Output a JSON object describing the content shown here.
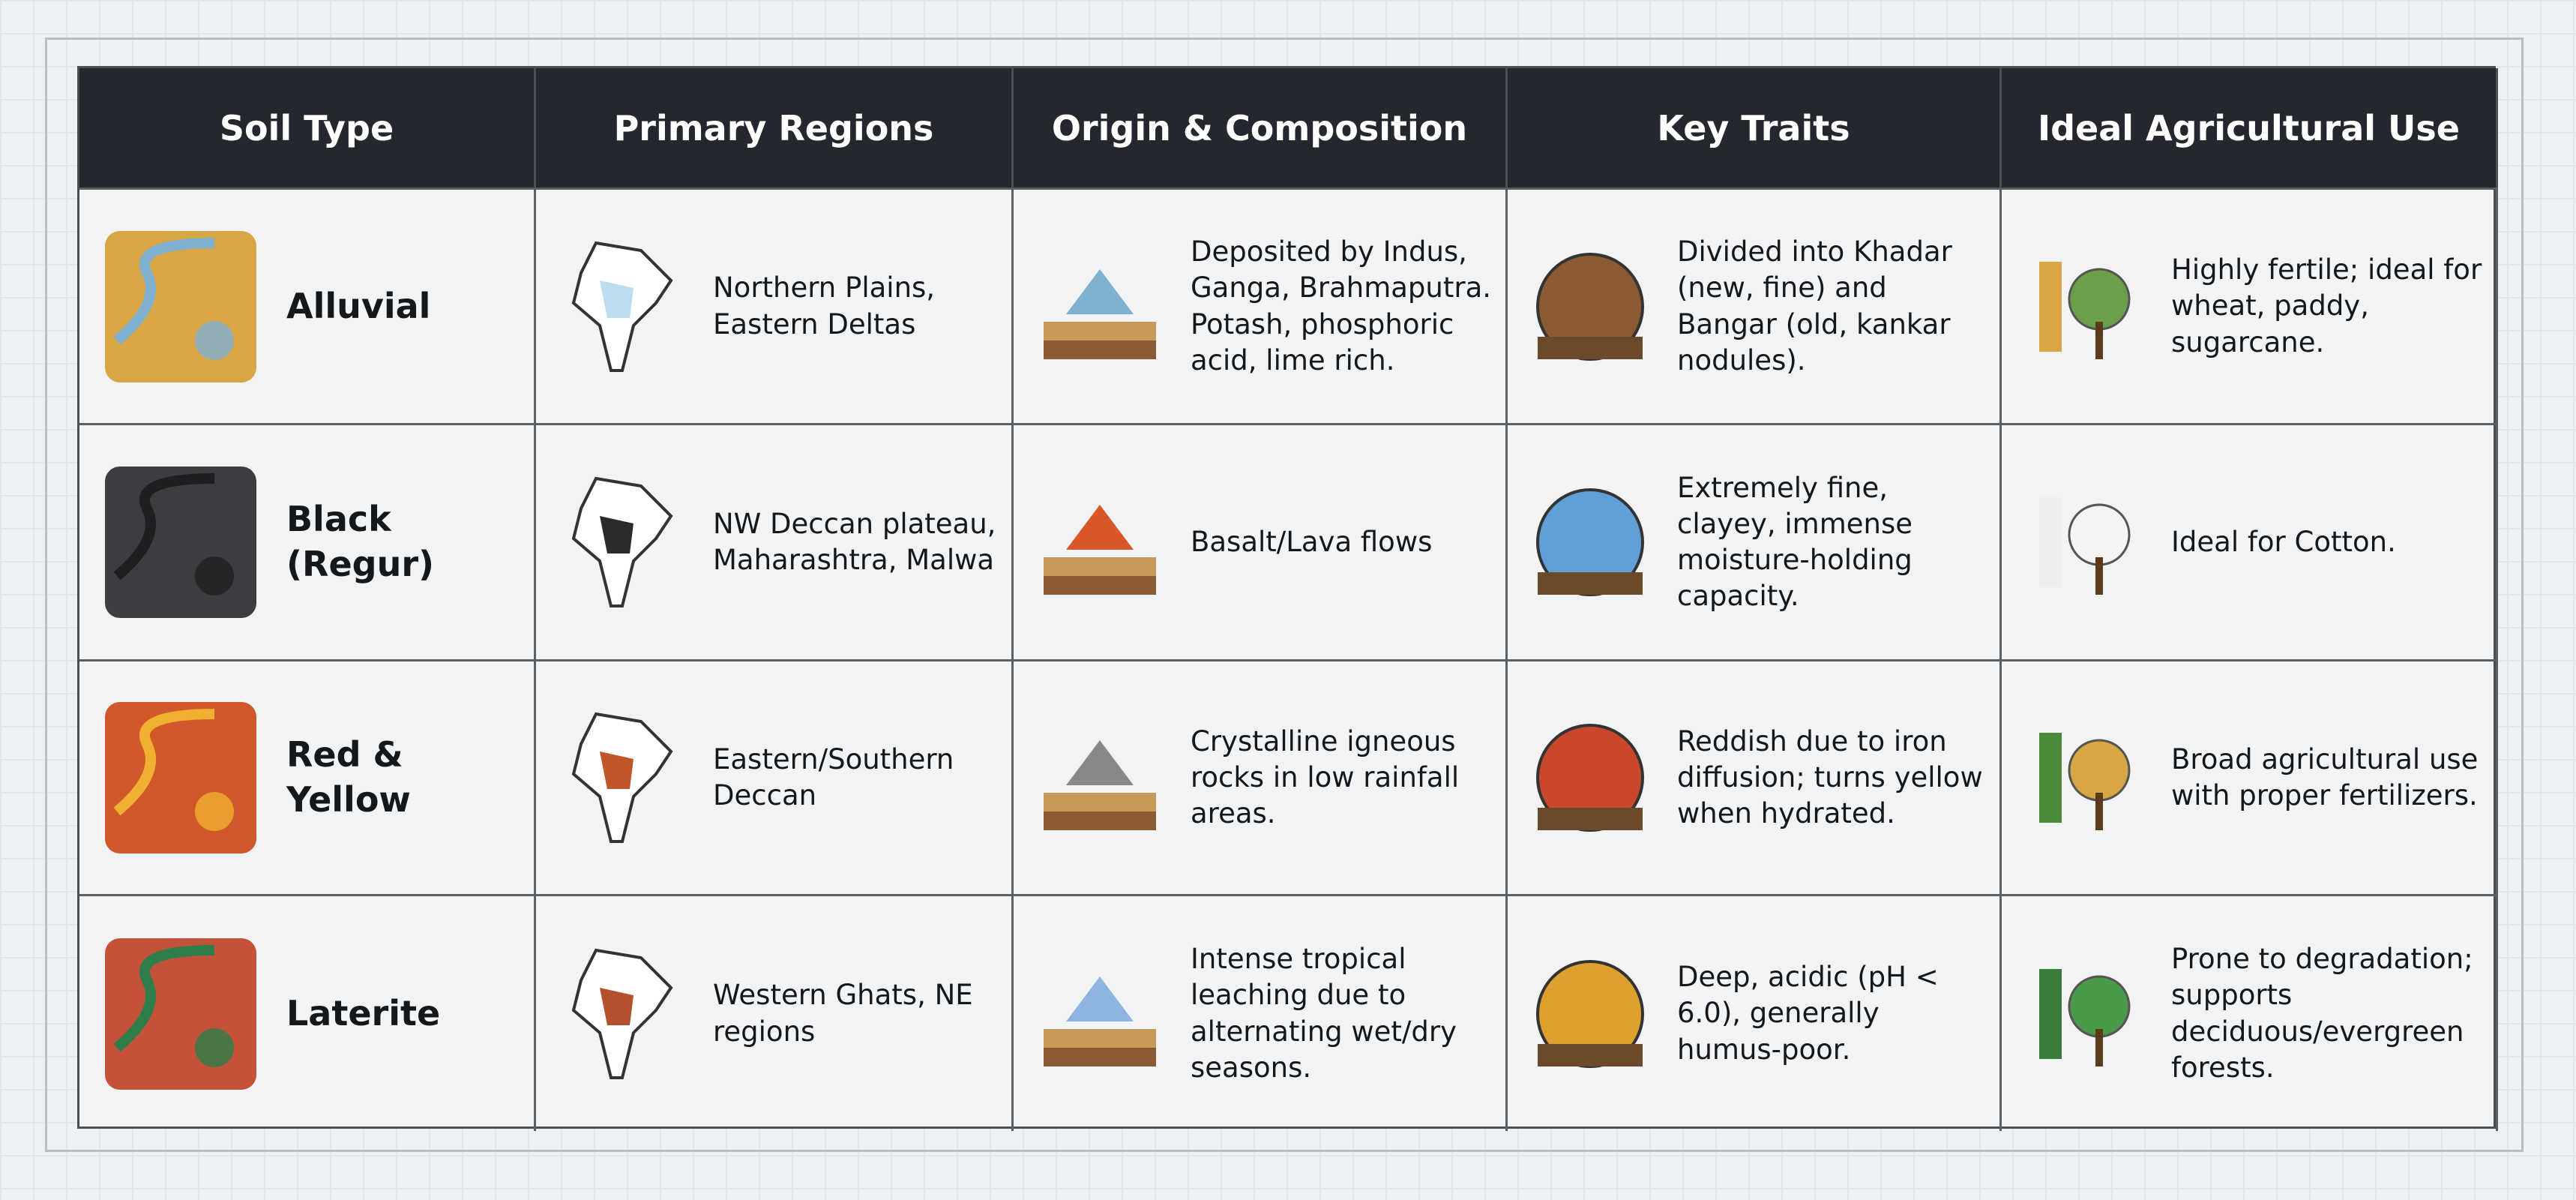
{
  "table": {
    "header": [
      "Soil Type",
      "Primary Regions",
      "Origin & Composition",
      "Key Traits",
      "Ideal Agricultural Use"
    ],
    "rows": [
      [
        "Alluvial",
        "Northern Plains, Eastern Deltas",
        "Deposited by Indus, Ganga, Brahmaputra. Potash, phosphoric acid, lime rich.",
        "Divided into Khadar (new, fine) and Bangar (old, kankar nodules).",
        "Highly fertile; ideal for wheat, paddy, sugarcane."
      ],
      [
        "Black (Regur)",
        "NW Deccan plateau, Maharashtra, Malwa",
        "Basalt/Lava flows",
        "Extremely fine, clayey, immense moisture-holding capacity.",
        "Ideal for Cotton."
      ],
      [
        "Red & Yellow",
        "Eastern/Southern Deccan",
        "Crystalline igneous rocks in low rainfall areas.",
        "Reddish due to iron diffusion; turns yellow when hydrated.",
        "Broad agricultural use with proper fertilizers."
      ],
      [
        "Laterite",
        "Western Ghats, NE regions",
        "Intense tropical leaching due to alternating wet/dry seasons.",
        "Deep, acidic (pH < 6.0), generally humus-poor.",
        "Prone to degradation; supports deciduous/evergreen forests."
      ]
    ]
  }
}
